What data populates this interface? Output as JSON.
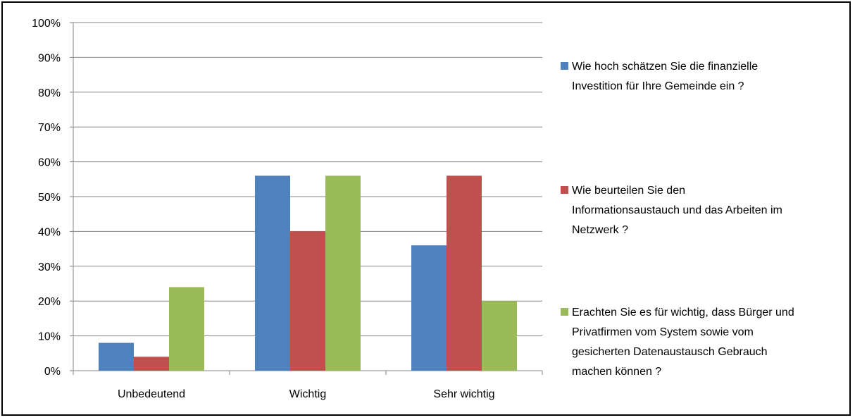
{
  "chart_data": {
    "type": "bar",
    "title": "",
    "xlabel": "",
    "ylabel": "",
    "categories": [
      "Unbedeutend",
      "Wichtig",
      "Sehr wichtig"
    ],
    "ylim": [
      0,
      100
    ],
    "yticks": [
      "0%",
      "10%",
      "20%",
      "30%",
      "40%",
      "50%",
      "60%",
      "70%",
      "80%",
      "90%",
      "100%"
    ],
    "grid": true,
    "legend_position": "right",
    "series": [
      {
        "name": "Wie hoch schätzen Sie die finanzielle Investition für Ihre Gemeinde ein ?",
        "legend_lines": [
          "Wie hoch schätzen Sie die finanzielle",
          "Investition für Ihre Gemeinde ein ?"
        ],
        "color": "#4F81BD",
        "values": [
          8,
          56,
          36
        ]
      },
      {
        "name": "Wie beurteilen Sie den Informationsaustauch und das Arbeiten im Netzwerk ?",
        "legend_lines": [
          "Wie beurteilen Sie den",
          "Informationsaustauch und das Arbeiten im",
          "Netzwerk ?"
        ],
        "color": "#C0504D",
        "values": [
          4,
          40,
          56
        ]
      },
      {
        "name": "Erachten Sie es für wichtig, dass Bürger und Privatfirmen vom System sowie vom gesicherten Datenaustausch Gebrauch machen können ?",
        "legend_lines": [
          "Erachten Sie es für wichtig, dass Bürger und",
          "Privatfirmen vom System sowie vom",
          "gesicherten Datenaustausch Gebrauch",
          "machen können ?"
        ],
        "color": "#9BBB59",
        "values": [
          24,
          56,
          20
        ]
      }
    ]
  }
}
